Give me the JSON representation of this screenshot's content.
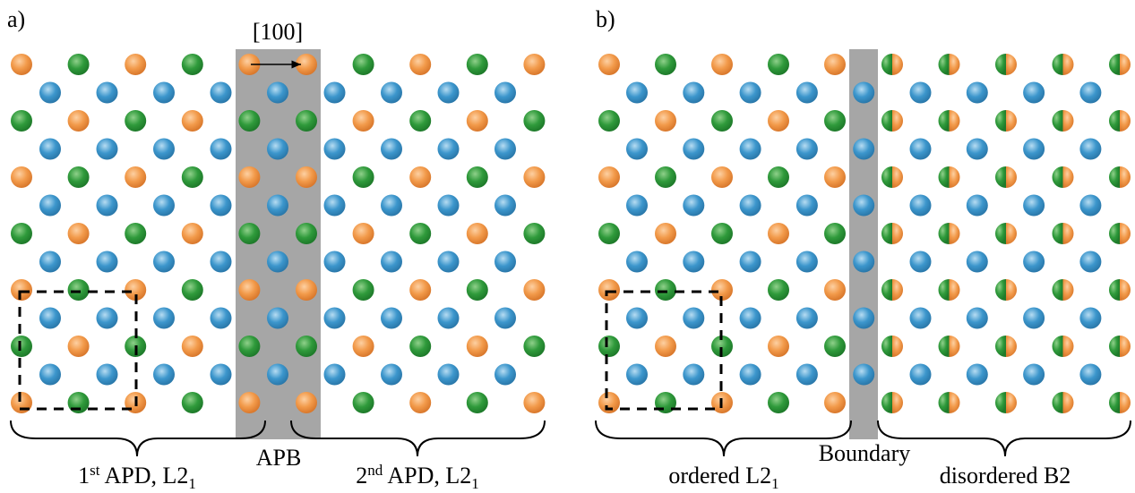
{
  "panels": [
    {
      "label": "a)",
      "direction": "[100]",
      "boundary": "APB",
      "domains": [
        {
          "parts": [
            "1",
            {
              "sup": "st"
            },
            " APD, L2",
            {
              "sub": "1"
            }
          ]
        },
        {
          "parts": [
            "2",
            {
              "sup": "nd"
            },
            " APD, L2",
            {
              "sub": "1"
            }
          ]
        }
      ]
    },
    {
      "label": "b)",
      "boundary": "Boundary",
      "domains": [
        {
          "parts": [
            "ordered L2",
            {
              "sub": "1"
            }
          ]
        },
        {
          "parts": [
            "disordered B2"
          ]
        }
      ]
    }
  ]
}
